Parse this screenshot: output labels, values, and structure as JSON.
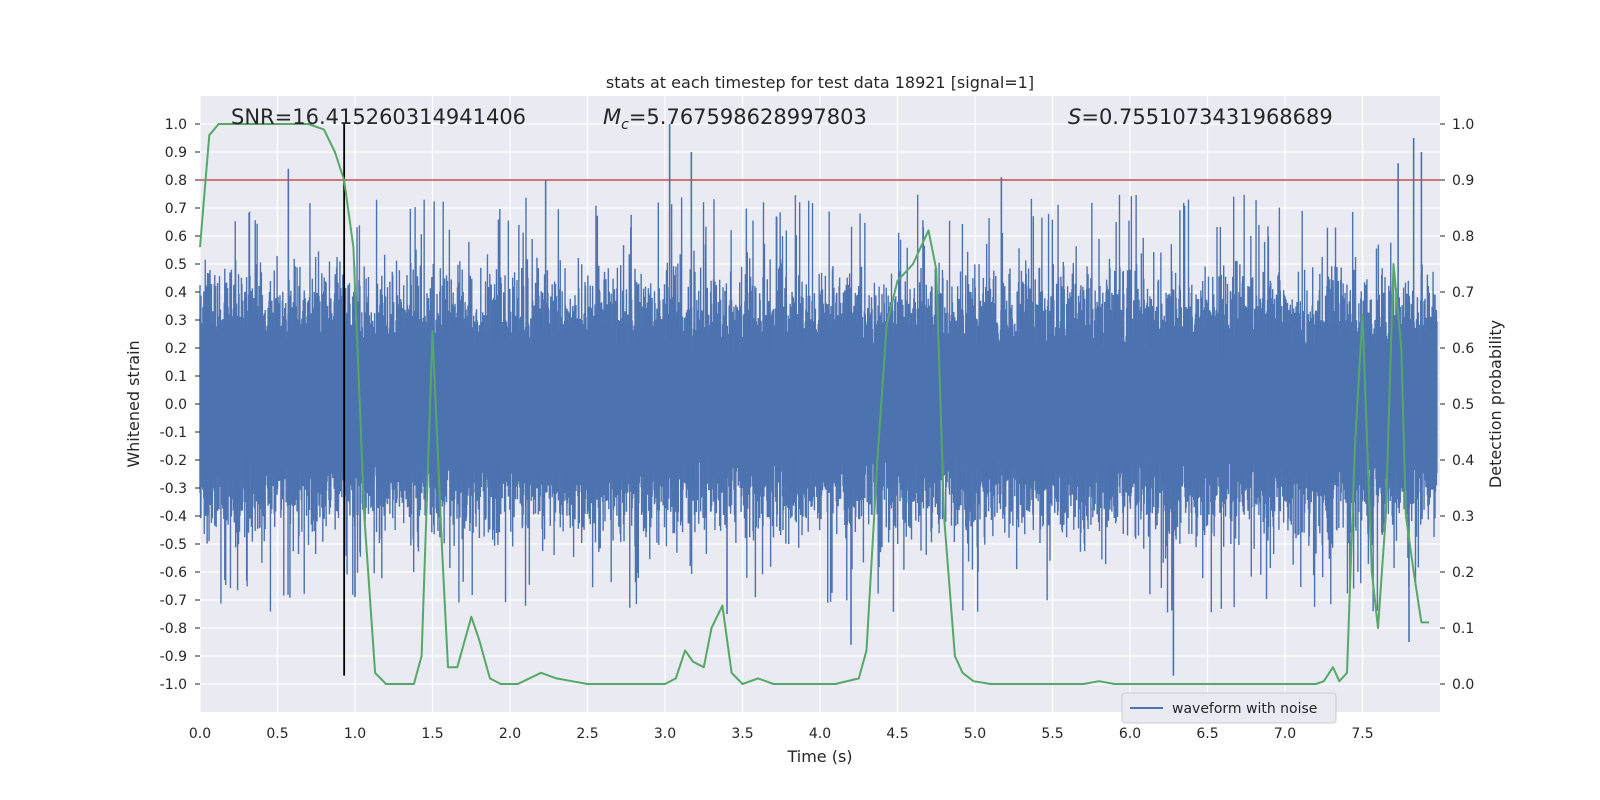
{
  "chart_data": {
    "type": "line",
    "title": "stats at each timestep for test data 18921 [signal=1]",
    "xlabel": "Time (s)",
    "ylabel": "Whitened strain",
    "ylabel_right": "Detection probability",
    "xlim": [
      0.0,
      8.0
    ],
    "ylim": [
      -1.1,
      1.1
    ],
    "ylim_right": [
      -0.05,
      1.05
    ],
    "x_ticks": [
      0.0,
      0.5,
      1.0,
      1.5,
      2.0,
      2.5,
      3.0,
      3.5,
      4.0,
      4.5,
      5.0,
      5.5,
      6.0,
      6.5,
      7.0,
      7.5
    ],
    "x_tick_labels": [
      "0.0",
      "0.5",
      "1.0",
      "1.5",
      "2.0",
      "2.5",
      "3.0",
      "3.5",
      "4.0",
      "4.5",
      "5.0",
      "5.5",
      "6.0",
      "6.5",
      "7.0",
      "7.5"
    ],
    "y_ticks": [
      1.0,
      0.9,
      0.8,
      0.7,
      0.6,
      0.5,
      0.4,
      0.3,
      0.2,
      0.1,
      0.0,
      -0.1,
      -0.2,
      -0.3,
      -0.4,
      -0.5,
      -0.6,
      -0.7,
      -0.8,
      -0.9,
      -1.0
    ],
    "y_tick_labels": [
      "1.0",
      "0.9",
      "0.8",
      "0.7",
      "0.6",
      "0.5",
      "0.4",
      "0.3",
      "0.2",
      "0.1",
      "0.0",
      "-0.1",
      "-0.2",
      "-0.3",
      "-0.4",
      "-0.5",
      "-0.6",
      "-0.7",
      "-0.8",
      "-0.9",
      "-1.0"
    ],
    "y_ticks_right": [
      1.0,
      0.9,
      0.8,
      0.7,
      0.6,
      0.5,
      0.4,
      0.3,
      0.2,
      0.1,
      0.0
    ],
    "y_tick_labels_right": [
      "1.0",
      "0.9",
      "0.8",
      "0.7",
      "0.6",
      "0.5",
      "0.4",
      "0.3",
      "0.2",
      "0.1",
      "0.0"
    ],
    "annotations": {
      "snr_text": "SNR=16.415260314941406",
      "mc_symbol": "M",
      "mc_sub": "c",
      "mc_value": "=5.767598628997803",
      "s_symbol": "S",
      "s_value": "=0.7551073431968689"
    },
    "threshold_line": {
      "y": 0.8,
      "color": "#c44e52"
    },
    "vertical_marker": {
      "x": 0.93,
      "y_range": [
        -0.97,
        1.0
      ],
      "color": "#000000"
    },
    "legend": {
      "label": "waveform with noise",
      "placement": "lower-right"
    },
    "series": [
      {
        "name": "waveform with noise",
        "axis": "left",
        "color": "#4c72b0",
        "representation": "dense noisy strain samples, envelope approximately ±0.3 to ±0.7 with spikes",
        "notable_peaks": [
          {
            "x": 0.57,
            "y": 0.84
          },
          {
            "x": 1.0,
            "y": -0.69
          },
          {
            "x": 2.23,
            "y": 0.8
          },
          {
            "x": 3.03,
            "y": 1.0
          },
          {
            "x": 3.17,
            "y": 0.9
          },
          {
            "x": 3.4,
            "y": -0.75
          },
          {
            "x": 4.2,
            "y": -0.86
          },
          {
            "x": 5.17,
            "y": 0.81
          },
          {
            "x": 6.28,
            "y": -0.97
          },
          {
            "x": 7.73,
            "y": 0.86
          },
          {
            "x": 7.83,
            "y": 0.95
          },
          {
            "x": 7.88,
            "y": 0.9
          },
          {
            "x": 7.8,
            "y": -0.85
          }
        ]
      },
      {
        "name": "detection probability",
        "axis": "right",
        "color": "#55a868",
        "x": [
          0.0,
          0.06,
          0.12,
          0.2,
          0.3,
          0.4,
          0.5,
          0.6,
          0.7,
          0.8,
          0.87,
          0.93,
          0.99,
          1.06,
          1.13,
          1.2,
          1.3,
          1.38,
          1.43,
          1.5,
          1.56,
          1.6,
          1.66,
          1.75,
          1.8,
          1.87,
          1.94,
          2.05,
          2.2,
          2.3,
          2.4,
          2.5,
          2.65,
          2.8,
          2.9,
          3.0,
          3.07,
          3.13,
          3.18,
          3.25,
          3.3,
          3.37,
          3.43,
          3.5,
          3.6,
          3.7,
          3.8,
          3.95,
          4.1,
          4.25,
          4.3,
          4.37,
          4.43,
          4.5,
          4.6,
          4.7,
          4.75,
          4.8,
          4.87,
          4.92,
          4.99,
          5.1,
          5.3,
          5.5,
          5.7,
          5.8,
          5.9,
          6.05,
          6.2,
          6.5,
          6.8,
          7.0,
          7.2,
          7.25,
          7.31,
          7.35,
          7.4,
          7.45,
          7.5,
          7.56,
          7.6,
          7.65,
          7.7,
          7.75,
          7.78,
          7.83,
          7.88,
          7.93
        ],
        "y": [
          0.78,
          0.98,
          1.0,
          1.0,
          1.0,
          1.0,
          1.0,
          1.0,
          1.0,
          0.99,
          0.95,
          0.9,
          0.78,
          0.3,
          0.02,
          0.0,
          0.0,
          0.0,
          0.05,
          0.63,
          0.25,
          0.03,
          0.03,
          0.12,
          0.08,
          0.01,
          0.0,
          0.0,
          0.02,
          0.01,
          0.005,
          0.0,
          0.0,
          0.0,
          0.0,
          0.0,
          0.01,
          0.06,
          0.04,
          0.03,
          0.1,
          0.14,
          0.02,
          0.0,
          0.01,
          0.0,
          0.0,
          0.0,
          0.0,
          0.01,
          0.06,
          0.4,
          0.64,
          0.72,
          0.75,
          0.81,
          0.74,
          0.3,
          0.05,
          0.02,
          0.005,
          0.0,
          0.0,
          0.0,
          0.0,
          0.005,
          0.0,
          0.0,
          0.0,
          0.0,
          0.0,
          0.0,
          0.0,
          0.005,
          0.03,
          0.005,
          0.02,
          0.42,
          0.66,
          0.2,
          0.1,
          0.3,
          0.75,
          0.6,
          0.3,
          0.2,
          0.11,
          0.11
        ]
      }
    ]
  }
}
